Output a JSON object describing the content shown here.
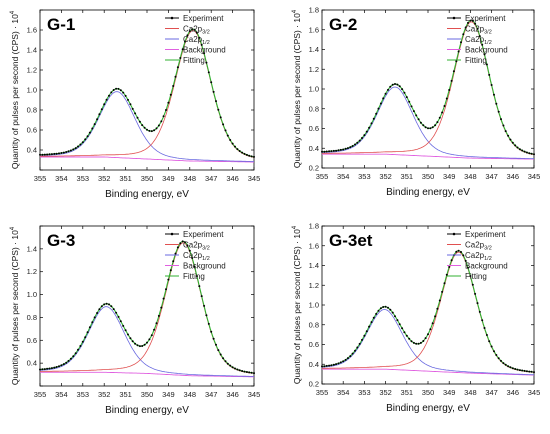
{
  "figure": {
    "ylabel": "Quantity of pulses per second (CPS) · 10",
    "ylabel_exp": "4",
    "xlabel": "Binding energy, eV",
    "legend": [
      "Experiment",
      "Ca2p",
      "Ca2p",
      "Background",
      "Fitting"
    ],
    "legend_sub": [
      "",
      "3/2",
      "1/2",
      "",
      ""
    ],
    "colors": {
      "experiment": "#000000",
      "ca2p32": "#e05050",
      "ca2p12": "#6a6ae0",
      "background": "#e060e0",
      "fitting": "#30b030"
    }
  },
  "chart_data": [
    {
      "type": "line",
      "panel_label": "G-1",
      "xlim": [
        355,
        345
      ],
      "ylim": [
        0.2,
        1.8
      ],
      "x_ticks": [
        355,
        354,
        353,
        352,
        351,
        350,
        349,
        348,
        347,
        346,
        345
      ],
      "y_ticks": [
        0.2,
        0.4,
        0.6,
        0.8,
        1.0,
        1.2,
        1.4,
        1.6,
        1.8
      ],
      "y_tick_labels": [
        "",
        "0.4",
        "0.6",
        "0.8",
        "1.0",
        "1.2",
        "1.4",
        "1.6",
        ""
      ],
      "peak_ca2p32": {
        "center": 347.85,
        "height": 1.305,
        "fwhm": 2.0
      },
      "peak_ca2p12": {
        "center": 351.4,
        "height": 0.66,
        "fwhm": 2.0
      },
      "background": [
        [
          355,
          0.33
        ],
        [
          352,
          0.33
        ],
        [
          350,
          0.31
        ],
        [
          348,
          0.29
        ],
        [
          345,
          0.28
        ]
      ]
    },
    {
      "type": "line",
      "panel_label": "G-2",
      "xlim": [
        355,
        345
      ],
      "ylim": [
        0.2,
        1.8
      ],
      "x_ticks": [
        355,
        354,
        353,
        352,
        351,
        350,
        349,
        348,
        347,
        346,
        345
      ],
      "y_ticks": [
        0.2,
        0.4,
        0.6,
        0.8,
        1.0,
        1.2,
        1.4,
        1.6,
        1.8
      ],
      "y_tick_labels": [
        "0.2",
        "0.4",
        "0.6",
        "0.8",
        "1.0",
        "1.2",
        "1.4",
        "1.6",
        "1.8"
      ],
      "peak_ca2p32": {
        "center": 347.95,
        "height": 1.38,
        "fwhm": 2.0
      },
      "peak_ca2p12": {
        "center": 351.55,
        "height": 0.685,
        "fwhm": 2.0
      },
      "background": [
        [
          355,
          0.34
        ],
        [
          352,
          0.34
        ],
        [
          350,
          0.32
        ],
        [
          348,
          0.3
        ],
        [
          345,
          0.29
        ]
      ]
    },
    {
      "type": "line",
      "panel_label": "G-3",
      "xlim": [
        355,
        345
      ],
      "ylim": [
        0.2,
        1.6
      ],
      "x_ticks": [
        355,
        354,
        353,
        352,
        351,
        350,
        349,
        348,
        347,
        346,
        345
      ],
      "y_ticks": [
        0.2,
        0.4,
        0.6,
        0.8,
        1.0,
        1.2,
        1.4,
        1.6
      ],
      "y_tick_labels": [
        "",
        "0.4",
        "0.6",
        "0.8",
        "1.0",
        "1.2",
        "1.4",
        ""
      ],
      "peak_ca2p32": {
        "center": 348.3,
        "height": 1.16,
        "fwhm": 2.0
      },
      "peak_ca2p12": {
        "center": 351.9,
        "height": 0.575,
        "fwhm": 2.0
      },
      "background": [
        [
          355,
          0.32
        ],
        [
          352,
          0.32
        ],
        [
          350,
          0.31
        ],
        [
          348,
          0.29
        ],
        [
          345,
          0.28
        ]
      ]
    },
    {
      "type": "line",
      "panel_label": "G-3et",
      "xlim": [
        355,
        345
      ],
      "ylim": [
        0.2,
        1.8
      ],
      "x_ticks": [
        355,
        354,
        353,
        352,
        351,
        350,
        349,
        348,
        347,
        346,
        345
      ],
      "y_ticks": [
        0.2,
        0.4,
        0.6,
        0.8,
        1.0,
        1.2,
        1.4,
        1.6,
        1.8
      ],
      "y_tick_labels": [
        "0.2",
        "0.4",
        "0.6",
        "0.8",
        "1.0",
        "1.2",
        "1.4",
        "1.6",
        "1.8"
      ],
      "peak_ca2p32": {
        "center": 348.55,
        "height": 1.22,
        "fwhm": 2.0
      },
      "peak_ca2p12": {
        "center": 352.05,
        "height": 0.605,
        "fwhm": 2.0
      },
      "background": [
        [
          355,
          0.35
        ],
        [
          352,
          0.35
        ],
        [
          350,
          0.33
        ],
        [
          348,
          0.31
        ],
        [
          345,
          0.29
        ]
      ]
    }
  ]
}
